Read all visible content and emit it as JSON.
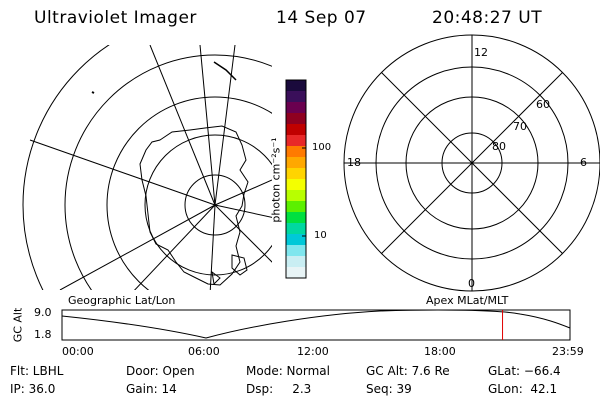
{
  "header": {
    "title": "Ultraviolet Imager",
    "date": "14 Sep 07",
    "time": "20:48:27 UT"
  },
  "colorbar": {
    "label": "photon cm⁻²s⁻¹",
    "ticks": [
      "100",
      "10"
    ],
    "colors": [
      "#1a0a3c",
      "#3a0f5a",
      "#6a004f",
      "#8f0020",
      "#c00000",
      "#e82828",
      "#ff7a00",
      "#ffa800",
      "#ffd400",
      "#f4ff00",
      "#b8ff00",
      "#5cf000",
      "#00e040",
      "#00d8a0",
      "#00c8d8",
      "#7fe6ee",
      "#c9eef3",
      "#e8f4f6"
    ]
  },
  "left_map": {
    "label": "Geographic Lat/Lon"
  },
  "right_map": {
    "label": "Apex MLat/MLT",
    "mlt_labels": {
      "top": "12",
      "left": "18",
      "right": "6",
      "bottom": "0"
    },
    "lat_labels": [
      "60",
      "70",
      "80"
    ]
  },
  "timeline": {
    "ylabel": "GC Alt",
    "y_ticks": [
      "9.0",
      "1.8"
    ],
    "x_ticks": [
      "00:00",
      "06:00",
      "12:00",
      "18:00",
      "23:59"
    ],
    "current_time_fraction": 0.8672
  },
  "footer": {
    "row1": [
      "Flt: LBHL",
      "Door: Open",
      "Mode: Normal",
      "GC Alt: 7.6 Re",
      "GLat: −66.4"
    ],
    "row2": [
      "IP: 36.0",
      "Gain: 14",
      "Dsp:     2.3",
      "Seq: 39",
      "GLon:  42.1"
    ]
  }
}
